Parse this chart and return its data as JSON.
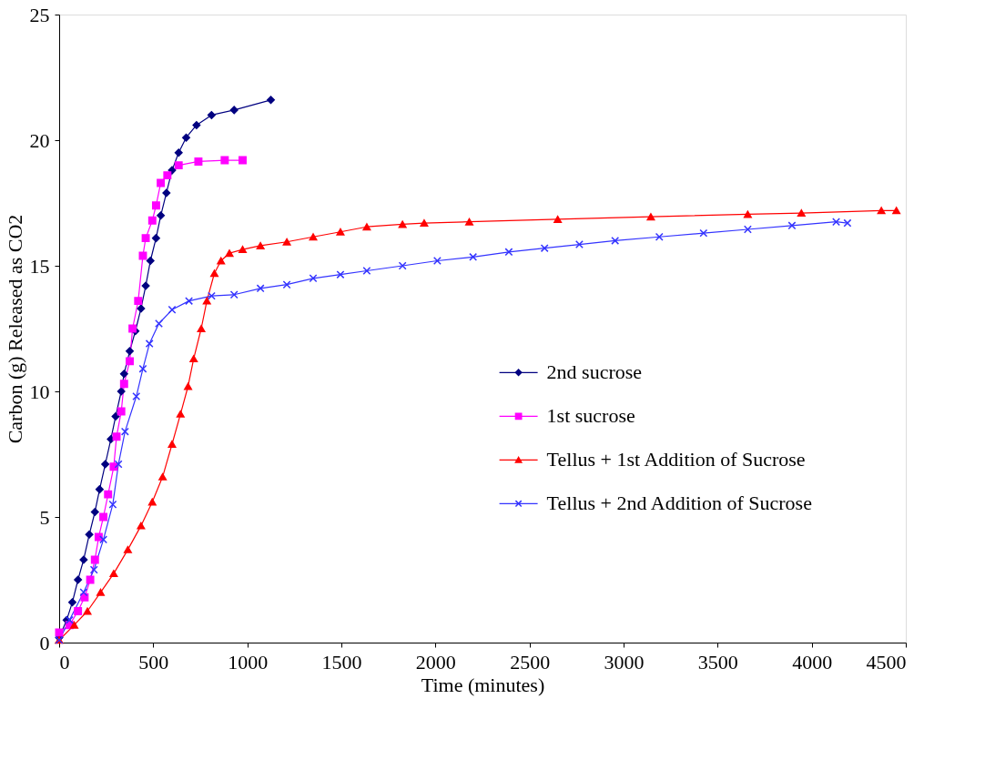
{
  "chart_data": {
    "type": "line",
    "xlabel": "Time (minutes)",
    "ylabel": "Carbon (g) Released as CO2",
    "xlim": [
      0,
      4500
    ],
    "xticks": [
      0,
      500,
      1000,
      1500,
      2000,
      2500,
      3000,
      3500,
      4000,
      4500
    ],
    "ylim": [
      0,
      25
    ],
    "yticks": [
      0,
      5,
      10,
      15,
      20,
      25
    ],
    "grid": false,
    "legend": "right",
    "line_style": "solid",
    "series": [
      {
        "name": "2nd sucrose",
        "color": "#000080",
        "marker": "diamond",
        "x": [
          0,
          40,
          70,
          100,
          130,
          160,
          190,
          215,
          245,
          275,
          300,
          330,
          345,
          375,
          405,
          435,
          460,
          485,
          515,
          540,
          570,
          600,
          635,
          675,
          730,
          810,
          930,
          1125
        ],
        "values": [
          0.2,
          0.9,
          1.6,
          2.5,
          3.3,
          4.3,
          5.2,
          6.1,
          7.1,
          8.1,
          9.0,
          10.0,
          10.7,
          11.6,
          12.4,
          13.3,
          14.2,
          15.2,
          16.1,
          17.0,
          17.9,
          18.8,
          19.5,
          20.1,
          20.6,
          21.0,
          21.2,
          21.6
        ]
      },
      {
        "name": "1st sucrose",
        "color": "#ff00ff",
        "marker": "square",
        "x": [
          0,
          55,
          100,
          135,
          165,
          190,
          210,
          235,
          260,
          290,
          305,
          330,
          345,
          375,
          390,
          420,
          445,
          460,
          495,
          515,
          540,
          575,
          635,
          740,
          880,
          975
        ],
        "values": [
          0.4,
          0.7,
          1.25,
          1.8,
          2.5,
          3.3,
          4.2,
          5.0,
          5.9,
          7.0,
          8.2,
          9.2,
          10.3,
          11.2,
          12.5,
          13.6,
          15.4,
          16.1,
          16.8,
          17.4,
          18.3,
          18.6,
          19.0,
          19.15,
          19.2,
          19.2
        ]
      },
      {
        "name": "Tellus + 1st Addition of Sucrose",
        "color": "#ff0000",
        "marker": "triangle",
        "x": [
          0,
          80,
          150,
          220,
          290,
          365,
          435,
          495,
          550,
          600,
          645,
          685,
          715,
          755,
          785,
          825,
          860,
          905,
          975,
          1070,
          1210,
          1350,
          1495,
          1635,
          1825,
          1940,
          2180,
          2650,
          3145,
          3660,
          3945,
          4370,
          4450
        ],
        "values": [
          0.1,
          0.7,
          1.25,
          2.0,
          2.75,
          3.7,
          4.65,
          5.6,
          6.6,
          7.9,
          9.1,
          10.2,
          11.3,
          12.5,
          13.6,
          14.7,
          15.2,
          15.5,
          15.65,
          15.8,
          15.95,
          16.15,
          16.35,
          16.55,
          16.65,
          16.7,
          16.75,
          16.85,
          16.95,
          17.05,
          17.1,
          17.2,
          17.2
        ]
      },
      {
        "name": "Tellus + 2nd Addition of Sucrose",
        "color": "#3333ff",
        "marker": "cross",
        "x": [
          0,
          55,
          130,
          185,
          235,
          285,
          315,
          350,
          410,
          445,
          480,
          530,
          600,
          690,
          810,
          930,
          1070,
          1210,
          1350,
          1495,
          1635,
          1825,
          2010,
          2200,
          2390,
          2580,
          2765,
          2955,
          3190,
          3425,
          3660,
          3895,
          4130,
          4190
        ],
        "values": [
          0.1,
          0.9,
          2.0,
          2.9,
          4.1,
          5.5,
          7.1,
          8.4,
          9.8,
          10.9,
          11.9,
          12.7,
          13.25,
          13.6,
          13.8,
          13.85,
          14.1,
          14.25,
          14.5,
          14.65,
          14.8,
          15.0,
          15.2,
          15.35,
          15.55,
          15.7,
          15.85,
          16.0,
          16.15,
          16.3,
          16.45,
          16.6,
          16.75,
          16.7
        ]
      }
    ]
  }
}
